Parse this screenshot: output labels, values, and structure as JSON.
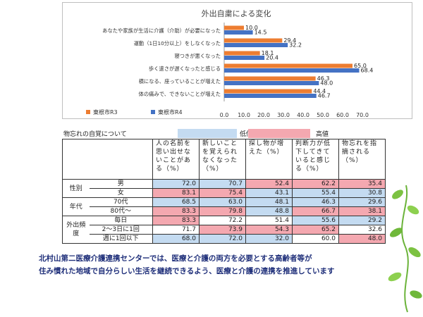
{
  "chart_data": {
    "type": "bar",
    "orientation": "horizontal",
    "title": "外出自粛による変化",
    "categories": [
      "あなたや家族が生活に介護（介助）が必要になった",
      "運動（1日10分以上）をしなくなった",
      "寝つきが悪くなった",
      "歩く速さが遅くなったと感じる",
      "横になる、座っていることが増えた",
      "体の痛みで、できないことが増えた"
    ],
    "series": [
      {
        "name": "東根市R3",
        "color": "#ed7d31",
        "values": [
          10.0,
          29.4,
          18.1,
          65.0,
          46.3,
          44.4
        ],
        "labels": [
          "10.0",
          "29.4",
          "18.1",
          "65.0",
          "46.3",
          "44.4"
        ]
      },
      {
        "name": "東根市R4",
        "color": "#4472c4",
        "values": [
          14.5,
          32.2,
          20.4,
          68.4,
          48.0,
          46.7
        ],
        "labels": [
          "14.5",
          "32.2",
          "20.4",
          "68.4",
          "48.0",
          "46.7"
        ]
      }
    ],
    "xlim": [
      0,
      70
    ],
    "xticks": [
      "0.0",
      "10.0",
      "20.0",
      "30.0",
      "40.0",
      "50.0",
      "60.0",
      "70.0"
    ],
    "legend_position": "bottom-left",
    "grid": false
  },
  "memory": {
    "title": "物忘れの自覚について",
    "legend_low": "低値",
    "legend_high": "高値",
    "colors": {
      "low": "#c4dbf1",
      "high": "#f4a8b0"
    },
    "headers": [
      "人の名前を思い出せないことがある（%）",
      "新しいことを覚えられなくなった（%）",
      "探し物が増えた（%）",
      "判断力が低下してきていると感じる（%）",
      "物忘れを指摘される（%）"
    ],
    "rows": [
      {
        "group": "性別",
        "label": "男",
        "values": [
          "72.0",
          "70.7",
          "52.4",
          "62.2",
          "35.4"
        ],
        "levels": [
          "low",
          "low",
          "high",
          "high",
          "high"
        ]
      },
      {
        "group": "",
        "label": "女",
        "values": [
          "83.1",
          "75.4",
          "43.1",
          "55.4",
          "30.8"
        ],
        "levels": [
          "high",
          "high",
          "low",
          "low",
          "low"
        ]
      },
      {
        "group": "年代",
        "label": "70代",
        "values": [
          "68.5",
          "63.0",
          "48.1",
          "46.3",
          "29.6"
        ],
        "levels": [
          "low",
          "low",
          "low",
          "low",
          "low"
        ]
      },
      {
        "group": "",
        "label": "80代～",
        "values": [
          "83.3",
          "79.8",
          "48.8",
          "66.7",
          "38.1"
        ],
        "levels": [
          "high",
          "high",
          "low",
          "high",
          "high"
        ]
      },
      {
        "group": "外出頻度",
        "label": "毎日",
        "values": [
          "83.3",
          "72.2",
          "51.4",
          "55.6",
          "29.2"
        ],
        "levels": [
          "high",
          "none",
          "none",
          "low",
          "low"
        ]
      },
      {
        "group": "",
        "label": "2～3日に1回",
        "values": [
          "71.7",
          "73.9",
          "54.3",
          "65.2",
          "32.6"
        ],
        "levels": [
          "none",
          "high",
          "high",
          "high",
          "none"
        ]
      },
      {
        "group": "",
        "label": "週に1回以下",
        "values": [
          "68.0",
          "72.0",
          "32.0",
          "60.0",
          "48.0"
        ],
        "levels": [
          "low",
          "low",
          "low",
          "none",
          "high"
        ]
      }
    ]
  },
  "footer": {
    "line1": "北村山第二医療介護連携センターでは、医療と介護の両方を必要とする高齢者等が",
    "line2": "住み慣れた地域で自分らしい生活を継続できるよう、医療と介護の連携を推進しています"
  }
}
